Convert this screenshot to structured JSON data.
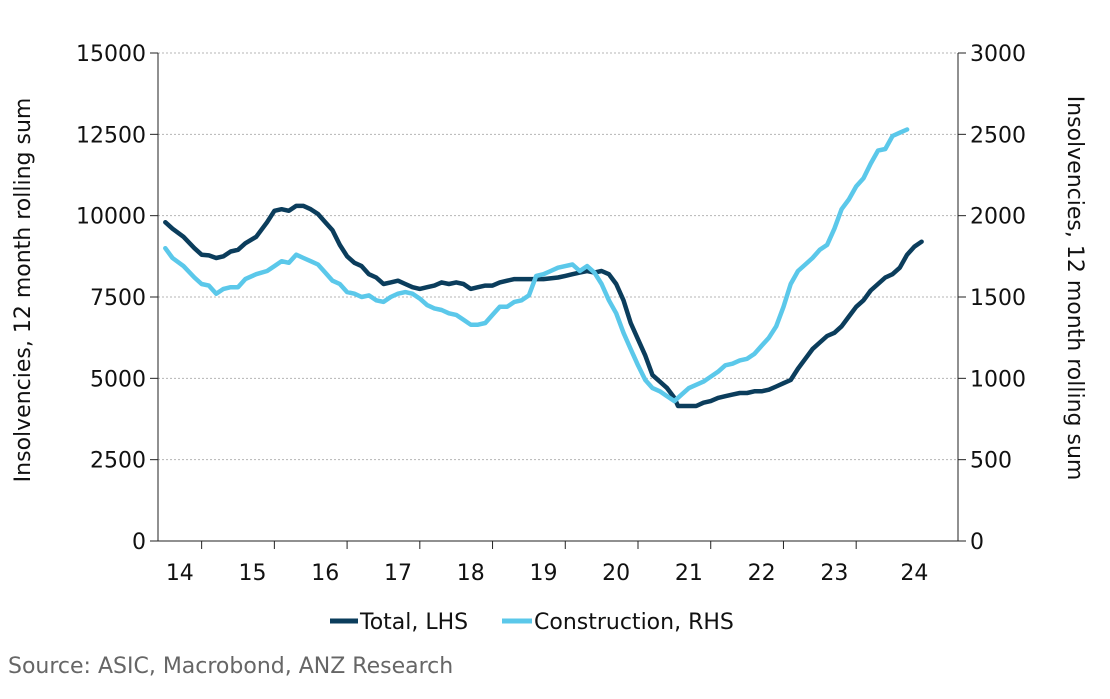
{
  "chart_data": {
    "type": "line",
    "title": "",
    "ylabel": "Insolvencies, 12 month rolling sum",
    "y2label": "Insolvencies, 12 month rolling sum",
    "ylim": [
      0,
      15000
    ],
    "y2lim": [
      0,
      3000
    ],
    "yticks": [
      "0",
      "2500",
      "5000",
      "7500",
      "10000",
      "12500",
      "15000"
    ],
    "y2ticks": [
      "0",
      "500",
      "1000",
      "1500",
      "2000",
      "2500",
      "3000"
    ],
    "xlim": [
      2013.4,
      2024.4
    ],
    "xticks": [
      "14",
      "15",
      "16",
      "17",
      "18",
      "19",
      "20",
      "21",
      "22",
      "23",
      "24"
    ],
    "series": [
      {
        "name": "Total, LHS",
        "axis": "left",
        "color": "#0b3d5c",
        "points": [
          [
            2013.5,
            9800
          ],
          [
            2013.6,
            9600
          ],
          [
            2013.75,
            9350
          ],
          [
            2013.9,
            9000
          ],
          [
            2014.0,
            8800
          ],
          [
            2014.1,
            8780
          ],
          [
            2014.2,
            8700
          ],
          [
            2014.3,
            8750
          ],
          [
            2014.4,
            8900
          ],
          [
            2014.5,
            8950
          ],
          [
            2014.6,
            9150
          ],
          [
            2014.75,
            9350
          ],
          [
            2014.9,
            9800
          ],
          [
            2015.0,
            10150
          ],
          [
            2015.1,
            10200
          ],
          [
            2015.2,
            10150
          ],
          [
            2015.3,
            10300
          ],
          [
            2015.4,
            10300
          ],
          [
            2015.5,
            10200
          ],
          [
            2015.6,
            10050
          ],
          [
            2015.7,
            9800
          ],
          [
            2015.8,
            9550
          ],
          [
            2015.9,
            9100
          ],
          [
            2016.0,
            8750
          ],
          [
            2016.1,
            8550
          ],
          [
            2016.2,
            8450
          ],
          [
            2016.3,
            8200
          ],
          [
            2016.4,
            8100
          ],
          [
            2016.5,
            7900
          ],
          [
            2016.6,
            7950
          ],
          [
            2016.7,
            8000
          ],
          [
            2016.8,
            7900
          ],
          [
            2016.9,
            7800
          ],
          [
            2017.0,
            7750
          ],
          [
            2017.1,
            7800
          ],
          [
            2017.2,
            7850
          ],
          [
            2017.3,
            7950
          ],
          [
            2017.4,
            7900
          ],
          [
            2017.5,
            7950
          ],
          [
            2017.6,
            7900
          ],
          [
            2017.7,
            7750
          ],
          [
            2017.8,
            7800
          ],
          [
            2017.9,
            7850
          ],
          [
            2018.0,
            7850
          ],
          [
            2018.1,
            7950
          ],
          [
            2018.2,
            8000
          ],
          [
            2018.3,
            8050
          ],
          [
            2018.5,
            8050
          ],
          [
            2018.7,
            8050
          ],
          [
            2018.9,
            8100
          ],
          [
            2019.0,
            8150
          ],
          [
            2019.1,
            8200
          ],
          [
            2019.2,
            8250
          ],
          [
            2019.3,
            8300
          ],
          [
            2019.4,
            8250
          ],
          [
            2019.5,
            8300
          ],
          [
            2019.6,
            8200
          ],
          [
            2019.7,
            7900
          ],
          [
            2019.8,
            7400
          ],
          [
            2019.9,
            6700
          ],
          [
            2020.0,
            6200
          ],
          [
            2020.1,
            5700
          ],
          [
            2020.2,
            5100
          ],
          [
            2020.3,
            4900
          ],
          [
            2020.4,
            4700
          ],
          [
            2020.5,
            4400
          ],
          [
            2020.55,
            4150
          ],
          [
            2020.7,
            4150
          ],
          [
            2020.8,
            4150
          ],
          [
            2020.9,
            4250
          ],
          [
            2021.0,
            4300
          ],
          [
            2021.1,
            4400
          ],
          [
            2021.2,
            4450
          ],
          [
            2021.3,
            4500
          ],
          [
            2021.4,
            4550
          ],
          [
            2021.5,
            4550
          ],
          [
            2021.6,
            4600
          ],
          [
            2021.7,
            4600
          ],
          [
            2021.8,
            4650
          ],
          [
            2021.9,
            4750
          ],
          [
            2022.0,
            4850
          ],
          [
            2022.1,
            4950
          ],
          [
            2022.2,
            5300
          ],
          [
            2022.3,
            5600
          ],
          [
            2022.4,
            5900
          ],
          [
            2022.5,
            6100
          ],
          [
            2022.6,
            6300
          ],
          [
            2022.7,
            6400
          ],
          [
            2022.8,
            6600
          ],
          [
            2022.9,
            6900
          ],
          [
            2023.0,
            7200
          ],
          [
            2023.1,
            7400
          ],
          [
            2023.2,
            7700
          ],
          [
            2023.3,
            7900
          ],
          [
            2023.4,
            8100
          ],
          [
            2023.5,
            8200
          ],
          [
            2023.6,
            8400
          ],
          [
            2023.7,
            8800
          ],
          [
            2023.8,
            9050
          ],
          [
            2023.9,
            9200
          ]
        ]
      },
      {
        "name": "Construction, RHS",
        "axis": "right",
        "color": "#5bc8ea",
        "points": [
          [
            2013.5,
            1800
          ],
          [
            2013.6,
            1740
          ],
          [
            2013.75,
            1690
          ],
          [
            2013.9,
            1620
          ],
          [
            2014.0,
            1580
          ],
          [
            2014.1,
            1570
          ],
          [
            2014.2,
            1520
          ],
          [
            2014.3,
            1550
          ],
          [
            2014.4,
            1560
          ],
          [
            2014.5,
            1560
          ],
          [
            2014.6,
            1610
          ],
          [
            2014.75,
            1640
          ],
          [
            2014.9,
            1660
          ],
          [
            2015.0,
            1690
          ],
          [
            2015.1,
            1720
          ],
          [
            2015.2,
            1710
          ],
          [
            2015.3,
            1760
          ],
          [
            2015.4,
            1740
          ],
          [
            2015.5,
            1720
          ],
          [
            2015.6,
            1700
          ],
          [
            2015.7,
            1650
          ],
          [
            2015.8,
            1600
          ],
          [
            2015.9,
            1580
          ],
          [
            2016.0,
            1530
          ],
          [
            2016.1,
            1520
          ],
          [
            2016.2,
            1500
          ],
          [
            2016.3,
            1510
          ],
          [
            2016.4,
            1480
          ],
          [
            2016.5,
            1470
          ],
          [
            2016.6,
            1500
          ],
          [
            2016.7,
            1520
          ],
          [
            2016.8,
            1530
          ],
          [
            2016.9,
            1520
          ],
          [
            2017.0,
            1490
          ],
          [
            2017.1,
            1450
          ],
          [
            2017.2,
            1430
          ],
          [
            2017.3,
            1420
          ],
          [
            2017.4,
            1400
          ],
          [
            2017.5,
            1390
          ],
          [
            2017.6,
            1360
          ],
          [
            2017.7,
            1330
          ],
          [
            2017.8,
            1330
          ],
          [
            2017.9,
            1340
          ],
          [
            2018.0,
            1390
          ],
          [
            2018.1,
            1440
          ],
          [
            2018.2,
            1440
          ],
          [
            2018.3,
            1470
          ],
          [
            2018.4,
            1480
          ],
          [
            2018.5,
            1510
          ],
          [
            2018.6,
            1630
          ],
          [
            2018.7,
            1640
          ],
          [
            2018.8,
            1660
          ],
          [
            2018.9,
            1680
          ],
          [
            2019.0,
            1690
          ],
          [
            2019.1,
            1700
          ],
          [
            2019.2,
            1660
          ],
          [
            2019.3,
            1690
          ],
          [
            2019.4,
            1650
          ],
          [
            2019.5,
            1580
          ],
          [
            2019.6,
            1480
          ],
          [
            2019.7,
            1400
          ],
          [
            2019.8,
            1280
          ],
          [
            2019.9,
            1180
          ],
          [
            2020.0,
            1080
          ],
          [
            2020.1,
            990
          ],
          [
            2020.2,
            940
          ],
          [
            2020.3,
            920
          ],
          [
            2020.4,
            890
          ],
          [
            2020.5,
            860
          ],
          [
            2020.6,
            900
          ],
          [
            2020.7,
            940
          ],
          [
            2020.8,
            960
          ],
          [
            2020.9,
            980
          ],
          [
            2021.0,
            1010
          ],
          [
            2021.1,
            1040
          ],
          [
            2021.2,
            1080
          ],
          [
            2021.3,
            1090
          ],
          [
            2021.4,
            1110
          ],
          [
            2021.5,
            1120
          ],
          [
            2021.6,
            1150
          ],
          [
            2021.7,
            1200
          ],
          [
            2021.8,
            1250
          ],
          [
            2021.9,
            1320
          ],
          [
            2022.0,
            1440
          ],
          [
            2022.1,
            1580
          ],
          [
            2022.2,
            1660
          ],
          [
            2022.3,
            1700
          ],
          [
            2022.4,
            1740
          ],
          [
            2022.5,
            1790
          ],
          [
            2022.6,
            1820
          ],
          [
            2022.7,
            1920
          ],
          [
            2022.8,
            2040
          ],
          [
            2022.9,
            2100
          ],
          [
            2023.0,
            2180
          ],
          [
            2023.1,
            2230
          ],
          [
            2023.2,
            2320
          ],
          [
            2023.3,
            2400
          ],
          [
            2023.4,
            2410
          ],
          [
            2023.5,
            2490
          ],
          [
            2023.6,
            2510
          ],
          [
            2023.7,
            2530
          ]
        ]
      }
    ]
  },
  "legend": {
    "items": [
      {
        "label": "Total, LHS",
        "color": "#0b3d5c"
      },
      {
        "label": "Construction, RHS",
        "color": "#5bc8ea"
      }
    ]
  },
  "footer": {
    "source": "Source: ASIC, Macrobond, ANZ Research"
  }
}
